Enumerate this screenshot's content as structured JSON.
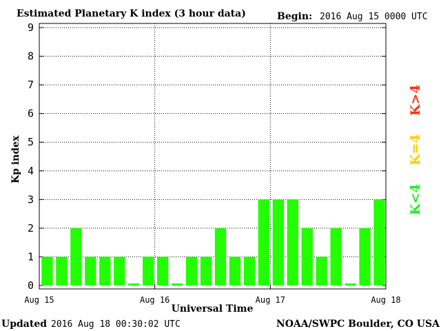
{
  "header": {
    "title": "Estimated Planetary K index (3 hour data)",
    "begin_label": "Begin:",
    "begin_value": "2016 Aug 15 0000 UTC"
  },
  "footer": {
    "updated_label": "Updated",
    "updated_value": "2016 Aug 18 00:30:02 UTC",
    "source": "NOAA/SWPC Boulder, CO USA"
  },
  "legend": {
    "k_less": {
      "text": "K<4",
      "color": "#22ee22"
    },
    "k_equal": {
      "text": "K=4",
      "color": "#ffcc00"
    },
    "k_greater": {
      "text": "K>4",
      "color": "#ff3311"
    }
  },
  "chart_data": {
    "type": "bar",
    "ylabel": "Kp index",
    "xlabel": "Universal Time",
    "ylim": [
      0,
      9
    ],
    "yticks": [
      "0",
      "1",
      "2",
      "3",
      "4",
      "5",
      "6",
      "7",
      "8",
      "9"
    ],
    "xticks": [
      "Aug 15",
      "Aug 16",
      "Aug 17",
      "Aug 18"
    ],
    "grid": true,
    "values": [
      1,
      1,
      2,
      1,
      1,
      1,
      0.07,
      1,
      1,
      0.07,
      1,
      1,
      2,
      1,
      1,
      3,
      3,
      3,
      2,
      1,
      2,
      0.07,
      2,
      3
    ],
    "bar_color": "#22ff00"
  }
}
